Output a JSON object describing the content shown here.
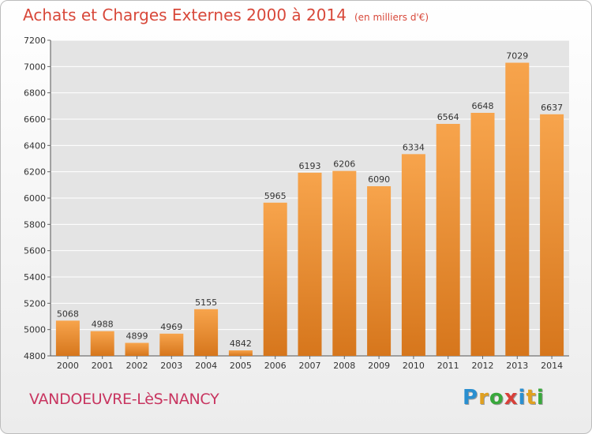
{
  "header": {
    "title": "Achats et Charges Externes 2000 à 2014",
    "subtitle": "(en milliers d'€)"
  },
  "chart_data": {
    "type": "bar",
    "categories": [
      "2000",
      "2001",
      "2002",
      "2003",
      "2004",
      "2005",
      "2006",
      "2007",
      "2008",
      "2009",
      "2010",
      "2011",
      "2012",
      "2013",
      "2014"
    ],
    "values": [
      5068,
      4988,
      4899,
      4969,
      5155,
      4842,
      5965,
      6193,
      6206,
      6090,
      6334,
      6564,
      6648,
      7029,
      6637
    ],
    "y_ticks": [
      "4800",
      "5000",
      "5200",
      "5400",
      "5600",
      "5800",
      "6000",
      "6200",
      "6400",
      "6600",
      "6800",
      "7000",
      "7200"
    ],
    "ylim": [
      4800,
      7200
    ],
    "title": "Achats et Charges Externes 2000 à 2014",
    "xlabel": "",
    "ylabel": "",
    "grid": true,
    "bar_color_light": "#f7a44c",
    "bar_color_dark": "#d6761c"
  },
  "footer": {
    "commune": "VANDOEUVRE-LèS-NANCY",
    "logo_letters": [
      "P",
      "r",
      "o",
      "x",
      "i",
      "t",
      "i"
    ],
    "logo_colors": [
      "#2a8fd0",
      "#e0a020",
      "#39a83c",
      "#d8403a",
      "#2a8fd0",
      "#e0a020",
      "#39a83c"
    ]
  }
}
